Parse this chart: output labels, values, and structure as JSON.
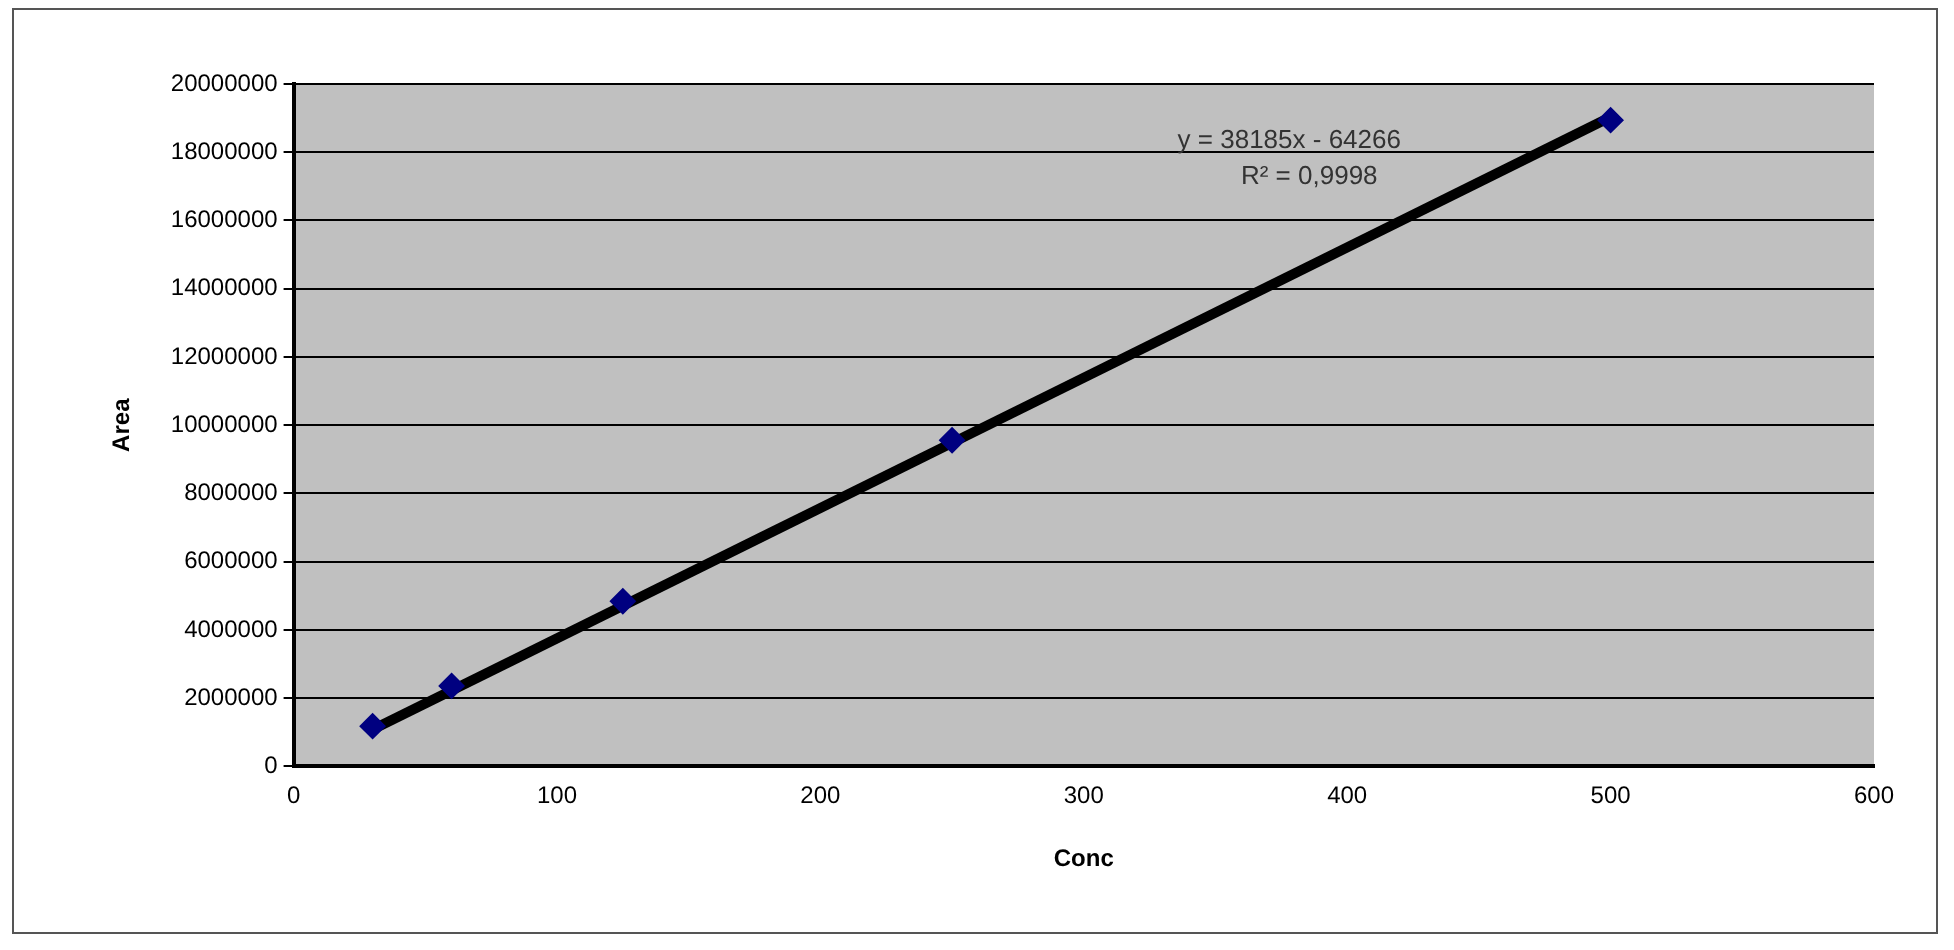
{
  "chart_data": {
    "type": "scatter",
    "xlabel": "Conc",
    "ylabel": "Area",
    "x": [
      30,
      60,
      125,
      250,
      500
    ],
    "series": [
      {
        "type": "scatter",
        "color": "#000080",
        "marker": "diamond",
        "values": [
          1180000,
          2360000,
          4840000,
          9560000,
          18940000
        ]
      },
      {
        "type": "line",
        "color": "#000000",
        "marker": "none",
        "x": [
          30,
          500
        ],
        "values": [
          1080000,
          19030000
        ]
      }
    ],
    "xlim": [
      0,
      600
    ],
    "xticks": [
      0,
      100,
      200,
      300,
      400,
      500,
      600
    ],
    "ylim": [
      0,
      20000000
    ],
    "yticks": [
      0,
      2000000,
      4000000,
      6000000,
      8000000,
      10000000,
      12000000,
      14000000,
      16000000,
      18000000,
      20000000
    ],
    "grid": "y",
    "legend": false,
    "annotations": [
      "y = 38185x - 64266",
      "R² = 0,9998"
    ]
  }
}
